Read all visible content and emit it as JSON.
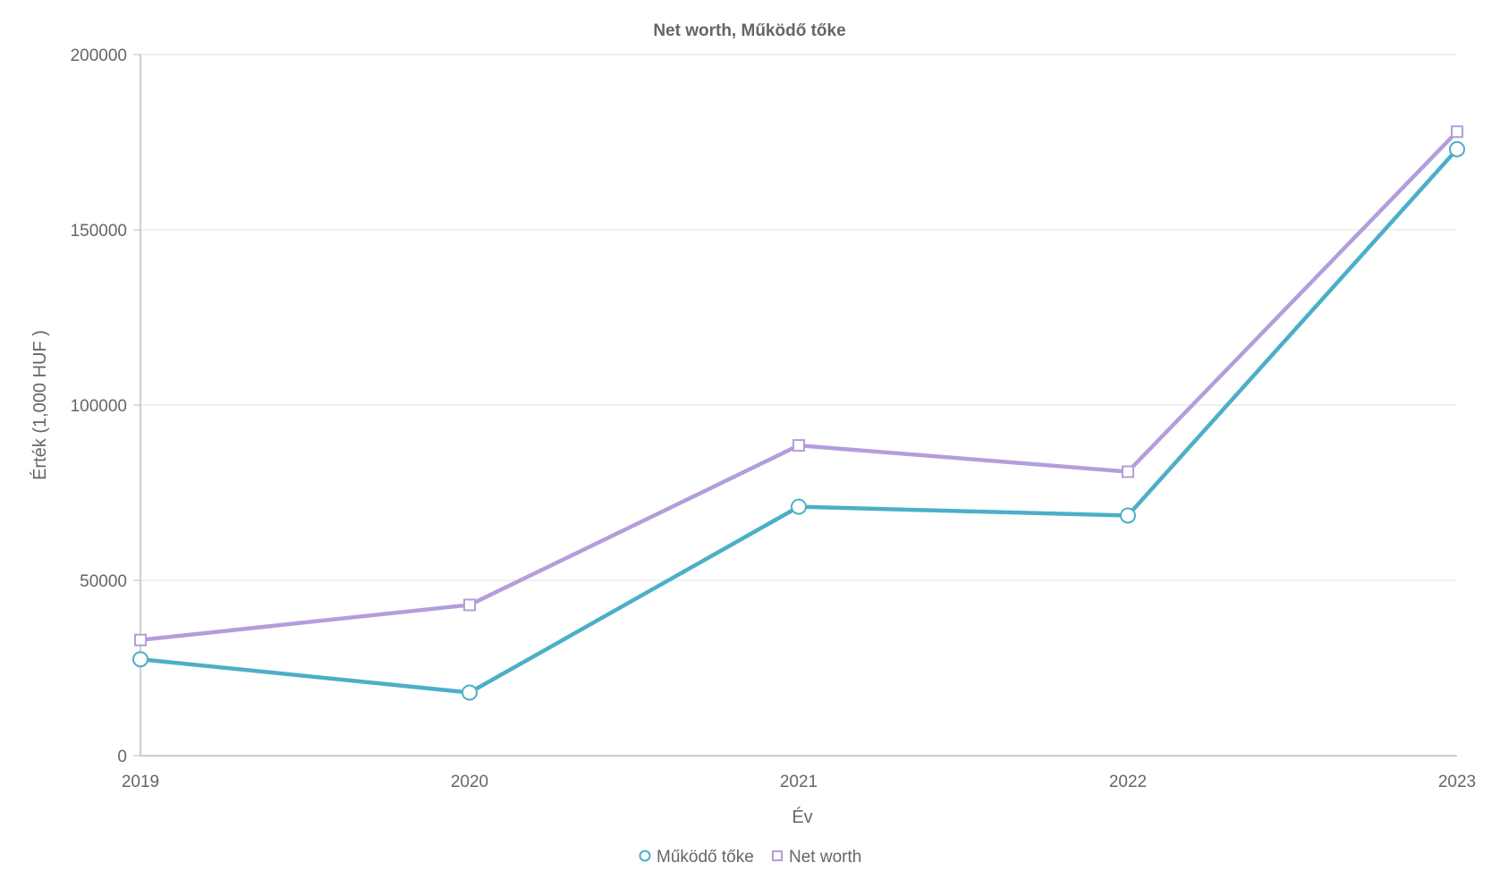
{
  "chart_data": {
    "type": "line",
    "title": "Net worth, Működő tőke",
    "xlabel": "Év",
    "ylabel": "Érték (1,000 HUF )",
    "categories": [
      "2019",
      "2020",
      "2021",
      "2022",
      "2023"
    ],
    "ylim": [
      0,
      200000
    ],
    "yticks": [
      "0",
      "50000",
      "100000",
      "150000",
      "200000"
    ],
    "grid": true,
    "legend_position": "bottom-center",
    "series": [
      {
        "name": "Működő tőke",
        "values": [
          27500,
          18000,
          71000,
          68500,
          173000
        ],
        "color": "#4bafc7",
        "marker": "circle"
      },
      {
        "name": "Net worth",
        "values": [
          33000,
          43000,
          88500,
          81000,
          178000
        ],
        "color": "#b39ddb",
        "marker": "square"
      }
    ]
  }
}
